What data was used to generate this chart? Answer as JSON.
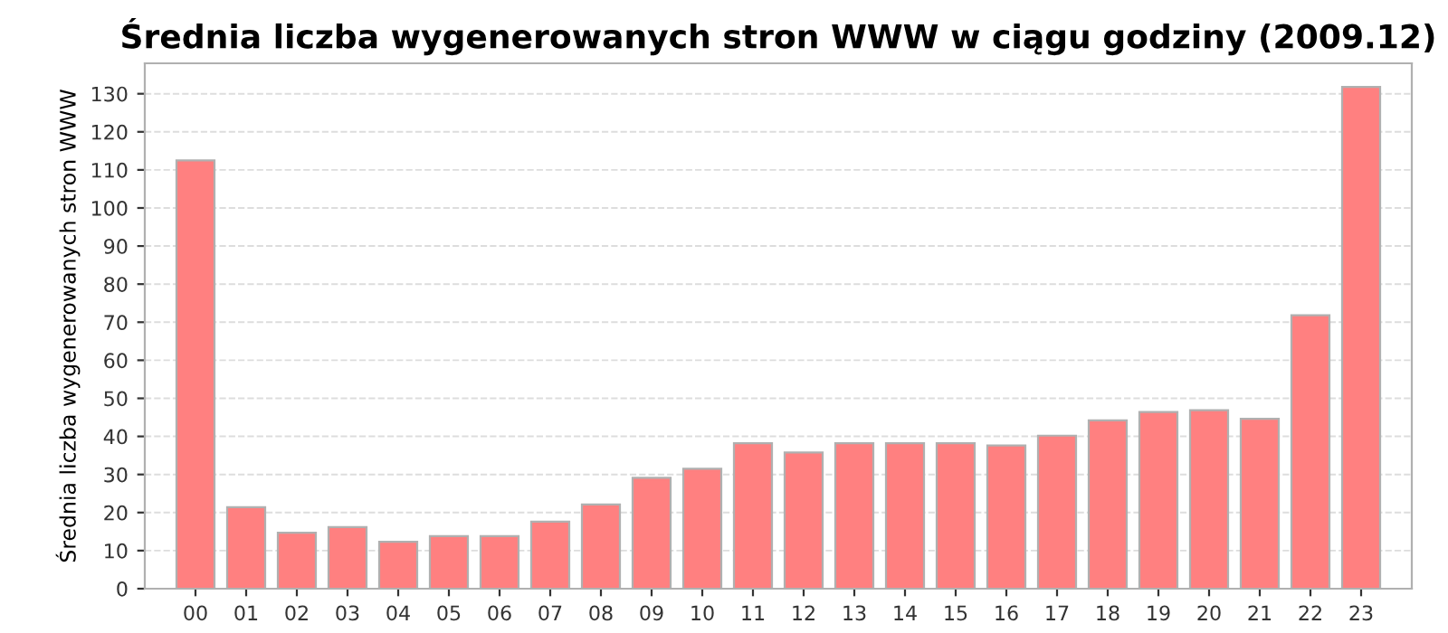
{
  "chart_data": {
    "type": "bar",
    "title": "Średnia liczba wygenerowanych stron WWW w ciągu godziny (2009.12)",
    "ylabel": "Średnia liczba wygenerowanych stron WWW",
    "categories": [
      "00",
      "01",
      "02",
      "03",
      "04",
      "05",
      "06",
      "07",
      "08",
      "09",
      "10",
      "11",
      "12",
      "13",
      "14",
      "15",
      "16",
      "17",
      "18",
      "19",
      "20",
      "21",
      "22",
      "23"
    ],
    "values": [
      112.5,
      21.4,
      14.7,
      16.2,
      12.3,
      13.8,
      13.8,
      17.6,
      22.1,
      29.1,
      31.5,
      38.2,
      35.8,
      38.2,
      38.2,
      38.2,
      37.6,
      40.2,
      44.2,
      46.4,
      46.9,
      44.6,
      71.8,
      131.8
    ],
    "color": "#ff8080",
    "ylim": [
      0,
      138
    ],
    "yticks": [
      0,
      10,
      20,
      30,
      40,
      50,
      60,
      70,
      80,
      90,
      100,
      110,
      120,
      130
    ],
    "grid": "y"
  }
}
